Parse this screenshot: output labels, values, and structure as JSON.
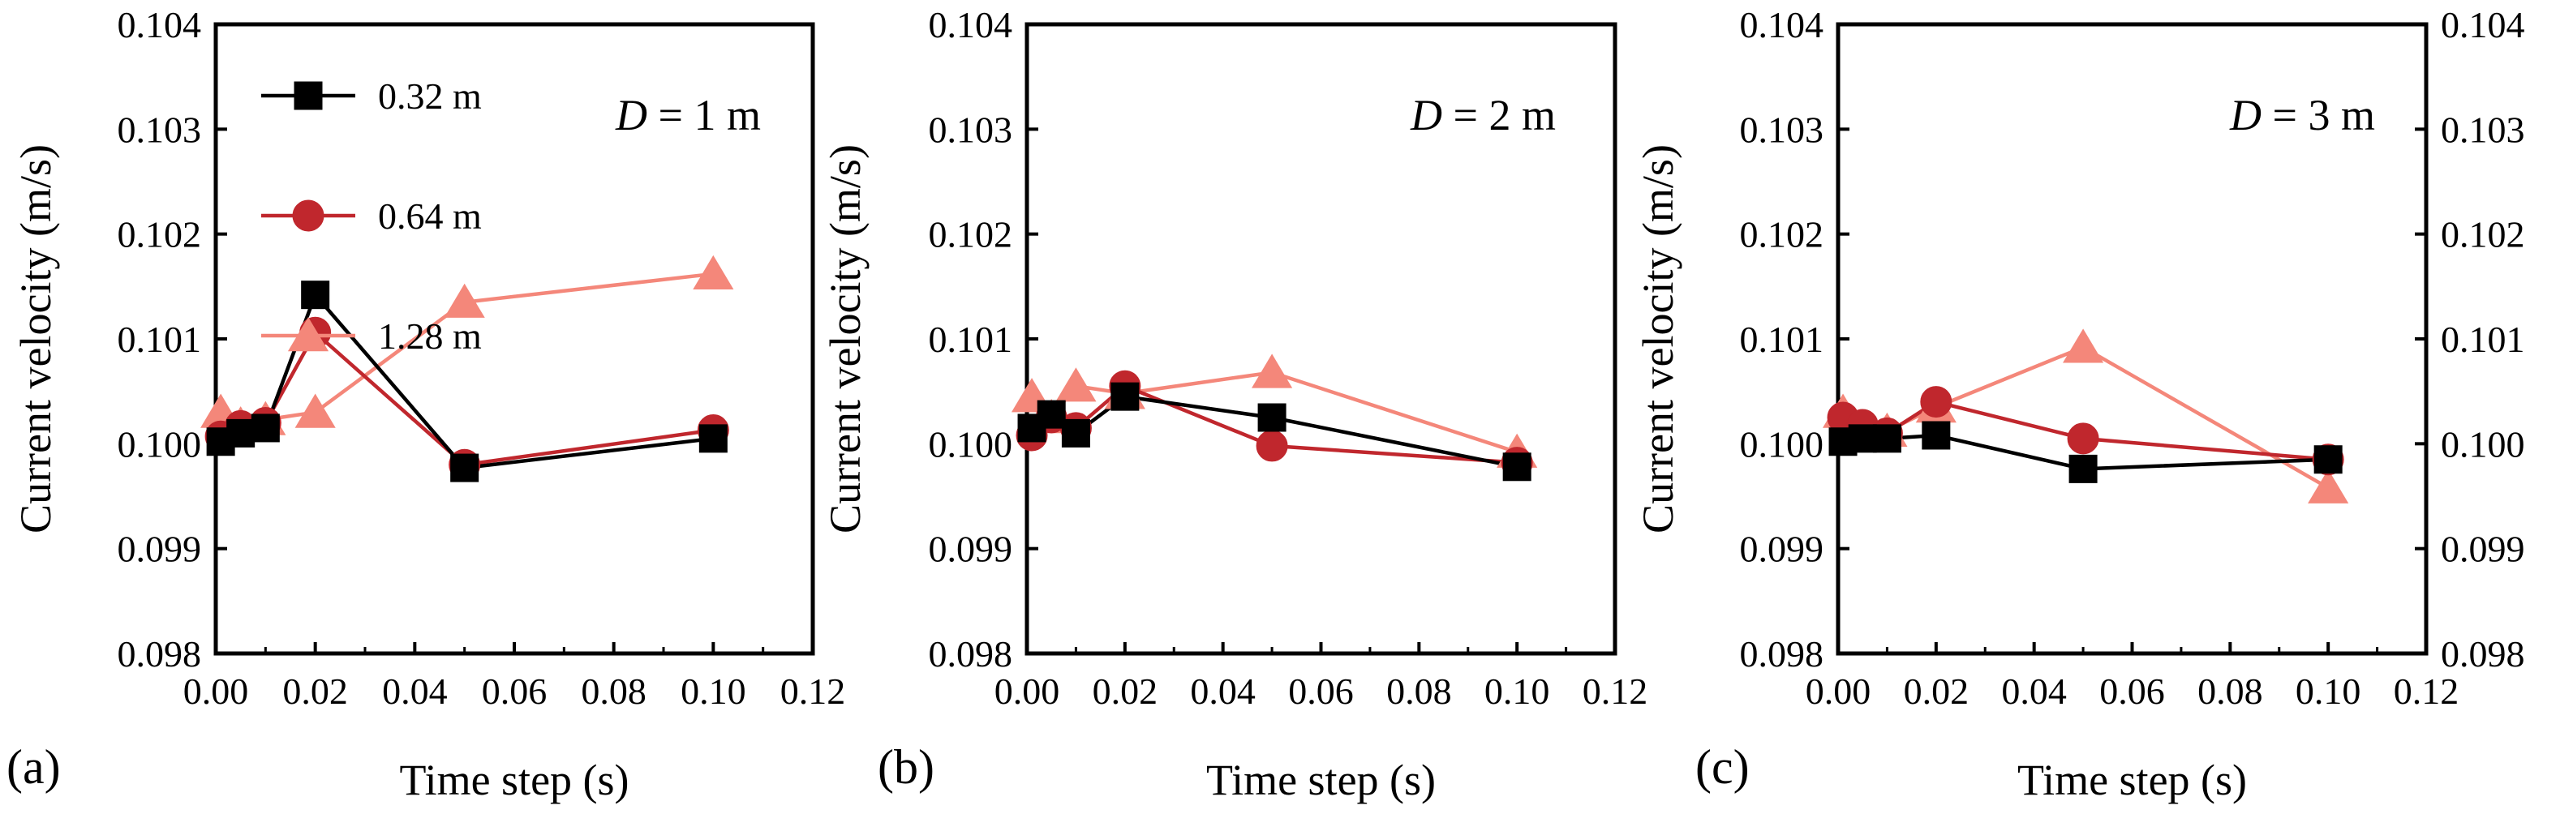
{
  "chart_data": [
    {
      "type": "line",
      "panel_label": "(a)",
      "annotation": {
        "italic": "D",
        "rest": " = 1 m"
      },
      "xlabel": "Time step (s)",
      "ylabel": "Current velocity  (m/s)",
      "xlim": [
        0,
        0.12
      ],
      "ylim": [
        0.098,
        0.104
      ],
      "xticks": [
        "0.00",
        "0.02",
        "0.04",
        "0.06",
        "0.08",
        "0.10",
        "0.12"
      ],
      "yticks": [
        "0.098",
        "0.099",
        "0.100",
        "0.101",
        "0.102",
        "0.103",
        "0.104"
      ],
      "y_axis_side": "left",
      "legend": {
        "placement": "top-left"
      },
      "series": [
        {
          "name": "0.32 m",
          "marker": "square",
          "color": "#000000",
          "x": [
            0.001,
            0.005,
            0.01,
            0.02,
            0.05,
            0.1
          ],
          "y": [
            0.10002,
            0.1001,
            0.10015,
            0.10142,
            0.09977,
            0.10005
          ]
        },
        {
          "name": "0.64 m",
          "marker": "circle",
          "color": "#c0272d",
          "x": [
            0.001,
            0.005,
            0.01,
            0.02,
            0.05,
            0.1
          ],
          "y": [
            0.10007,
            0.10017,
            0.1002,
            0.10106,
            0.0998,
            0.10013
          ]
        },
        {
          "name": "1.28 m",
          "marker": "triangle",
          "color": "#f4877a",
          "x": [
            0.001,
            0.005,
            0.01,
            0.02,
            0.05,
            0.1
          ],
          "y": [
            0.1003,
            0.10018,
            0.10023,
            0.1003,
            0.10135,
            0.10162
          ]
        }
      ]
    },
    {
      "type": "line",
      "panel_label": "(b)",
      "annotation": {
        "italic": "D",
        "rest": " = 2 m"
      },
      "xlabel": "Time step (s)",
      "ylabel": "Current velocity (m/s)",
      "xlim": [
        0,
        0.12
      ],
      "ylim": [
        0.098,
        0.104
      ],
      "xticks": [
        "0.00",
        "0.02",
        "0.04",
        "0.06",
        "0.08",
        "0.10",
        "0.12"
      ],
      "yticks": [
        "0.098",
        "0.099",
        "0.100",
        "0.101",
        "0.102",
        "0.103",
        "0.104"
      ],
      "y_axis_side": "left",
      "series": [
        {
          "name": "0.32 m",
          "marker": "square",
          "color": "#000000",
          "x": [
            0.001,
            0.005,
            0.01,
            0.02,
            0.05,
            0.1
          ],
          "y": [
            0.10015,
            0.10028,
            0.1001,
            0.10045,
            0.10025,
            0.09978
          ]
        },
        {
          "name": "0.64 m",
          "marker": "circle",
          "color": "#c0272d",
          "x": [
            0.001,
            0.005,
            0.01,
            0.02,
            0.05,
            0.1
          ],
          "y": [
            0.10008,
            0.10025,
            0.10015,
            0.10055,
            0.09998,
            0.09982
          ]
        },
        {
          "name": "1.28 m",
          "marker": "triangle",
          "color": "#f4877a",
          "x": [
            0.001,
            0.005,
            0.01,
            0.02,
            0.05,
            0.1
          ],
          "y": [
            0.10045,
            0.10025,
            0.10055,
            0.10048,
            0.10068,
            0.09992
          ]
        }
      ]
    },
    {
      "type": "line",
      "panel_label": "(c)",
      "annotation": {
        "italic": "D",
        "rest": " = 3 m"
      },
      "xlabel": "Time step (s)",
      "ylabel": "Current velocity (m/s)",
      "xlim": [
        0,
        0.12
      ],
      "ylim": [
        0.098,
        0.104
      ],
      "xticks": [
        "0.00",
        "0.02",
        "0.04",
        "0.06",
        "0.08",
        "0.10",
        "0.12"
      ],
      "yticks": [
        "0.098",
        "0.099",
        "0.100",
        "0.101",
        "0.102",
        "0.103",
        "0.104"
      ],
      "y_axis_side": "both",
      "series": [
        {
          "name": "0.32 m",
          "marker": "square",
          "color": "#000000",
          "x": [
            0.001,
            0.005,
            0.01,
            0.02,
            0.05,
            0.1
          ],
          "y": [
            0.10002,
            0.10005,
            0.10005,
            0.10008,
            0.09976,
            0.09985
          ]
        },
        {
          "name": "0.64 m",
          "marker": "circle",
          "color": "#c0272d",
          "x": [
            0.001,
            0.005,
            0.01,
            0.02,
            0.05,
            0.1
          ],
          "y": [
            0.10025,
            0.10018,
            0.1001,
            0.1004,
            0.10005,
            0.09985
          ]
        },
        {
          "name": "1.28 m",
          "marker": "triangle",
          "color": "#f4877a",
          "x": [
            0.001,
            0.005,
            0.01,
            0.02,
            0.05,
            0.1
          ],
          "y": [
            0.1003,
            0.10015,
            0.10012,
            0.10035,
            0.10092,
            0.09958
          ]
        }
      ]
    }
  ]
}
